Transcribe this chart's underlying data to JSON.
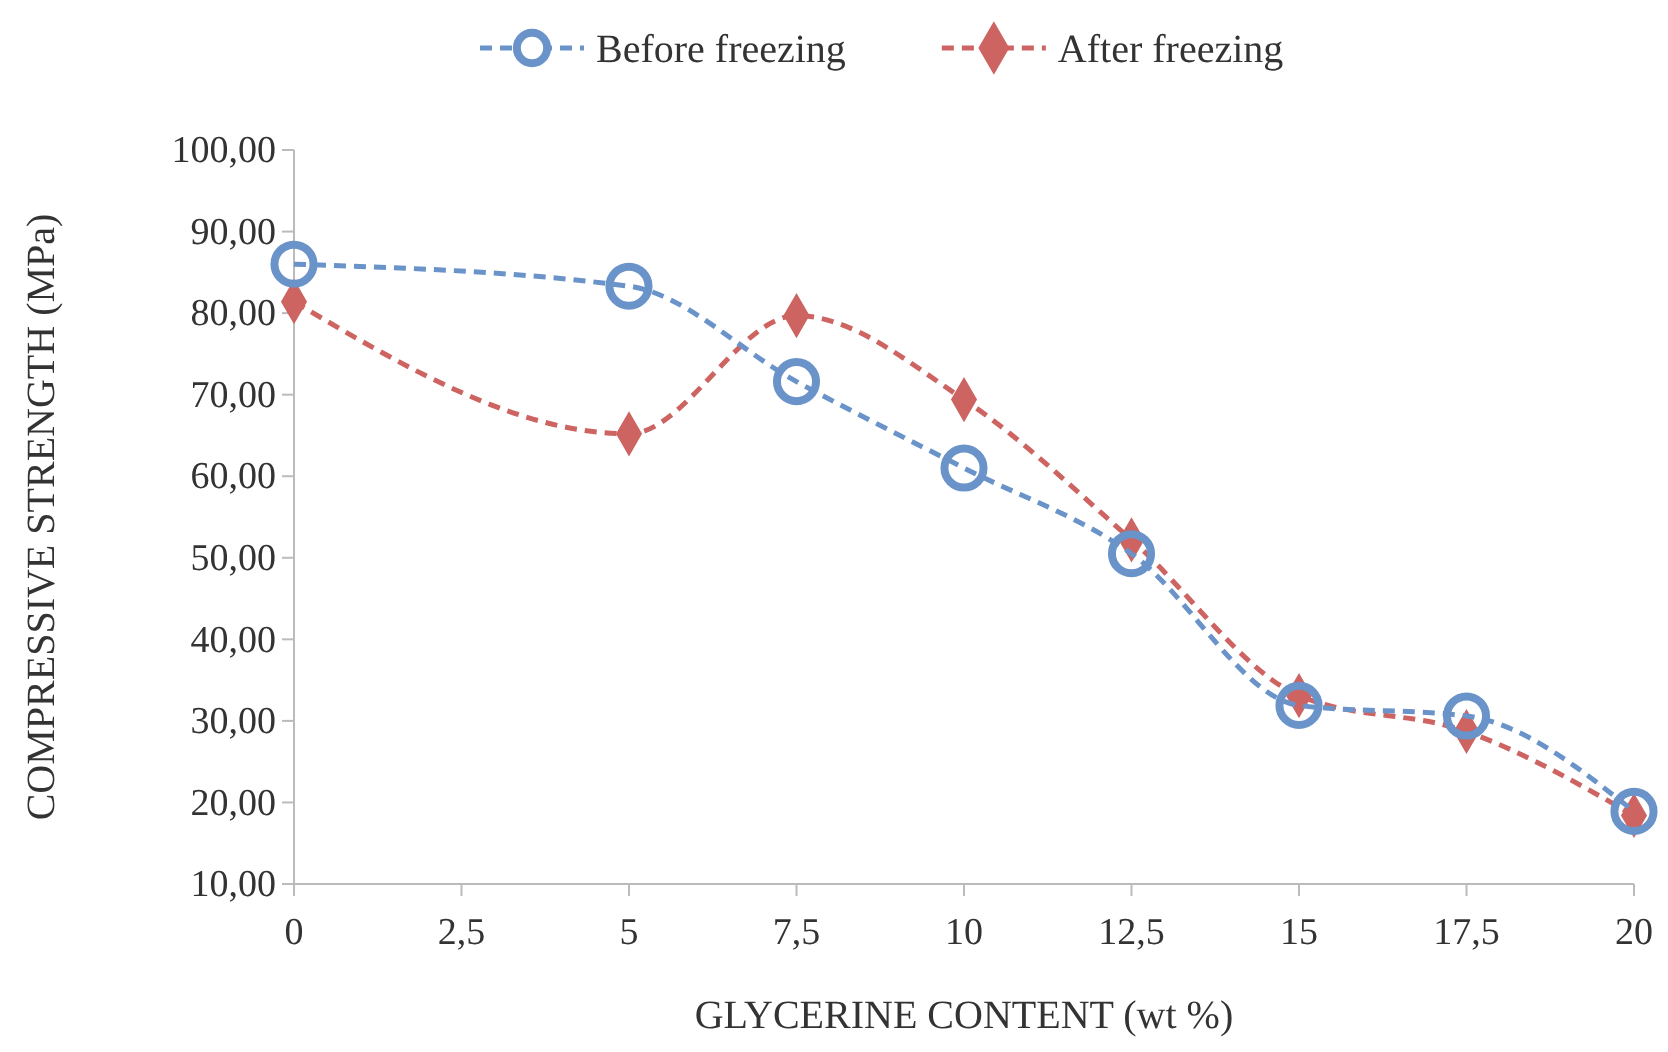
{
  "chart_data": {
    "type": "line",
    "xlabel": "GLYCERINE  CONTENT (wt %)",
    "ylabel": "COMPRESSIVE STRENGTH (MPa)",
    "x": [
      0,
      5,
      7.5,
      10,
      12.5,
      15,
      17.5,
      20
    ],
    "series": [
      {
        "name": "Before freezing",
        "color": "#6a93c9",
        "marker": "circle",
        "values": [
          86.0,
          83.3,
          71.6,
          61.0,
          50.5,
          31.9,
          30.6,
          18.9
        ]
      },
      {
        "name": "After freezing",
        "color": "#cd6462",
        "marker": "diamond",
        "values": [
          81.4,
          65.2,
          79.7,
          69.4,
          52.2,
          33.1,
          28.7,
          18.4
        ]
      }
    ],
    "xlim": [
      0,
      20
    ],
    "xticks": [
      0,
      {
        "value": 2.5,
        "label": "2,5"
      },
      5,
      {
        "value": 7.5,
        "label": "7,5"
      },
      10,
      {
        "value": 12.5,
        "label": "12,5"
      },
      15,
      {
        "value": 17.5,
        "label": "17,5"
      },
      20
    ],
    "ylim": [
      10,
      100
    ],
    "yticks": [
      {
        "value": 10,
        "label": "10,00"
      },
      {
        "value": 20,
        "label": "20,00"
      },
      {
        "value": 30,
        "label": "30,00"
      },
      {
        "value": 40,
        "label": "40,00"
      },
      {
        "value": 50,
        "label": "50,00"
      },
      {
        "value": 60,
        "label": "60,00"
      },
      {
        "value": 70,
        "label": "70,00"
      },
      {
        "value": 80,
        "label": "80,00"
      },
      {
        "value": 90,
        "label": "90,00"
      },
      {
        "value": 100,
        "label": "100,00"
      }
    ],
    "line_style": "dashed",
    "legend": "top",
    "grid": false
  }
}
